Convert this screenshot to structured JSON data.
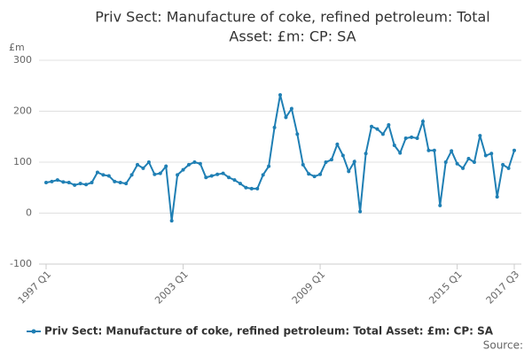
{
  "chart_data": {
    "type": "line",
    "title": [
      "Priv Sect: Manufacture of coke, refined petroleum: Total",
      "Asset: £m: CP: SA"
    ],
    "y_label": "£m",
    "categories": [
      "1997 Q1",
      null,
      null,
      null,
      null,
      null,
      null,
      null,
      null,
      null,
      null,
      null,
      null,
      null,
      null,
      null,
      null,
      null,
      null,
      null,
      null,
      null,
      null,
      null,
      "2003 Q1",
      null,
      null,
      null,
      null,
      null,
      null,
      null,
      null,
      null,
      null,
      null,
      null,
      null,
      null,
      null,
      null,
      null,
      null,
      null,
      null,
      null,
      null,
      null,
      "2009 Q1",
      null,
      null,
      null,
      null,
      null,
      null,
      null,
      null,
      null,
      null,
      null,
      null,
      null,
      null,
      null,
      null,
      null,
      null,
      null,
      null,
      null,
      null,
      null,
      "2015 Q1",
      null,
      null,
      null,
      null,
      null,
      null,
      null,
      null,
      null,
      "2017 Q3"
    ],
    "series": [
      {
        "name": "Priv Sect: Manufacture of coke, refined petroleum: Total Asset: £m: CP: SA",
        "color": "#1f7fb4",
        "values": [
          60,
          62,
          65,
          61,
          60,
          55,
          58,
          56,
          60,
          80,
          75,
          73,
          62,
          60,
          58,
          75,
          95,
          88,
          100,
          76,
          78,
          92,
          -15,
          75,
          85,
          95,
          100,
          97,
          70,
          73,
          76,
          78,
          70,
          65,
          58,
          50,
          48,
          48,
          75,
          92,
          168,
          232,
          188,
          205,
          155,
          95,
          77,
          72,
          76,
          100,
          105,
          135,
          113,
          82,
          101,
          3,
          117,
          170,
          165,
          155,
          173,
          133,
          118,
          147,
          149,
          147,
          180,
          123,
          123,
          15,
          100,
          122,
          97,
          88,
          107,
          100,
          152,
          113,
          117,
          32,
          95,
          88,
          123
        ]
      }
    ],
    "ylim": [
      -100,
      300
    ],
    "yticks": [
      -100,
      0,
      100,
      200,
      300
    ],
    "grid": true,
    "source": "Source:"
  }
}
